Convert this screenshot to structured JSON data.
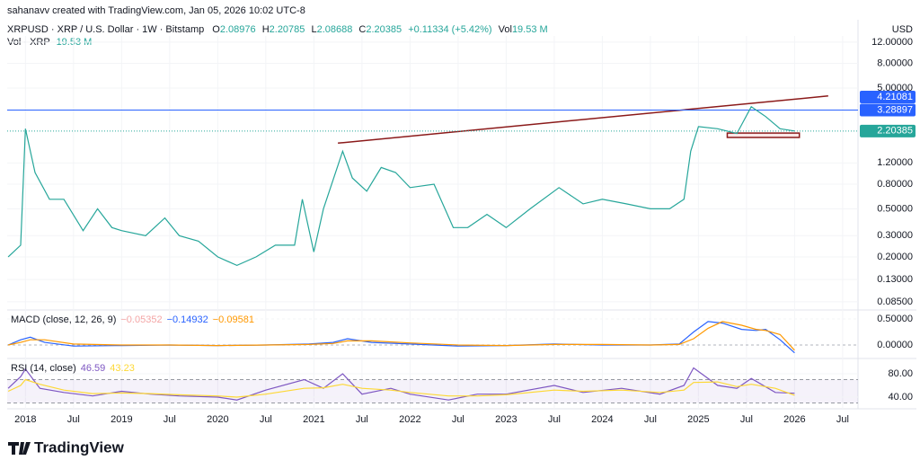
{
  "header": {
    "author_line": "sahanavv created with TradingView.com, Jan 05, 2026 10:02 UTC-8",
    "brand": "TradingView"
  },
  "chart_data": [
    {
      "type": "line",
      "title": "XRPUSD · XRP / U.S. Dollar · 1W · Bitstamp",
      "ohlc": [
        {
          "key": "O",
          "value": "2.08976"
        },
        {
          "key": "H",
          "value": "2.20785"
        },
        {
          "key": "L",
          "value": "2.08688"
        },
        {
          "key": "C",
          "value": "2.20385"
        }
      ],
      "change": "+0.11334 (+5.42%)",
      "vol_key": "Vol",
      "vol_value": "19.53 M",
      "vol_title": "Vol · XRP",
      "vol_title_value": "19.53 M",
      "y_axis_label": "USD",
      "log_scale": true,
      "color": "#26a69a",
      "x": [
        2017.82,
        2017.95,
        2018.0,
        2018.1,
        2018.25,
        2018.4,
        2018.6,
        2018.75,
        2018.9,
        2019.0,
        2019.25,
        2019.45,
        2019.6,
        2019.8,
        2020.0,
        2020.2,
        2020.4,
        2020.6,
        2020.8,
        2020.88,
        2021.0,
        2021.1,
        2021.3,
        2021.4,
        2021.55,
        2021.7,
        2021.85,
        2022.0,
        2022.25,
        2022.45,
        2022.6,
        2022.8,
        2023.0,
        2023.25,
        2023.55,
        2023.8,
        2024.0,
        2024.25,
        2024.5,
        2024.7,
        2024.85,
        2024.92,
        2025.0,
        2025.2,
        2025.4,
        2025.55,
        2025.7,
        2025.85,
        2026.0
      ],
      "values": [
        0.2,
        0.25,
        2.3,
        1.0,
        0.6,
        0.6,
        0.33,
        0.5,
        0.35,
        0.33,
        0.3,
        0.42,
        0.3,
        0.27,
        0.2,
        0.17,
        0.2,
        0.25,
        0.25,
        0.6,
        0.22,
        0.5,
        1.5,
        0.9,
        0.7,
        1.1,
        1.0,
        0.75,
        0.8,
        0.35,
        0.35,
        0.45,
        0.35,
        0.5,
        0.75,
        0.55,
        0.6,
        0.55,
        0.5,
        0.5,
        0.6,
        1.5,
        2.4,
        2.3,
        2.1,
        3.5,
        2.9,
        2.3,
        2.20385
      ],
      "xlim": [
        2017.81,
        2026.66
      ],
      "xticks": [
        {
          "value": 2018,
          "label": "2018"
        },
        {
          "value": 2018.5,
          "label": "Jul"
        },
        {
          "value": 2019,
          "label": "2019"
        },
        {
          "value": 2019.5,
          "label": "Jul"
        },
        {
          "value": 2020,
          "label": "2020"
        },
        {
          "value": 2020.5,
          "label": "Jul"
        },
        {
          "value": 2021,
          "label": "2021"
        },
        {
          "value": 2021.5,
          "label": "Jul"
        },
        {
          "value": 2022,
          "label": "2022"
        },
        {
          "value": 2022.5,
          "label": "Jul"
        },
        {
          "value": 2023,
          "label": "2023"
        },
        {
          "value": 2023.5,
          "label": "Jul"
        },
        {
          "value": 2024,
          "label": "2024"
        },
        {
          "value": 2024.5,
          "label": "Jul"
        },
        {
          "value": 2025,
          "label": "2025"
        },
        {
          "value": 2025.5,
          "label": "Jul"
        },
        {
          "value": 2026,
          "label": "2026"
        },
        {
          "value": 2026.5,
          "label": "Jul"
        }
      ],
      "ylim": [
        0.074,
        13.5
      ],
      "yticks": [
        {
          "value": 12,
          "label": "12.00000"
        },
        {
          "value": 8,
          "label": "8.00000"
        },
        {
          "value": 5,
          "label": "5.00000"
        },
        {
          "value": 1.2,
          "label": "1.20000"
        },
        {
          "value": 0.8,
          "label": "0.80000"
        },
        {
          "value": 0.5,
          "label": "0.50000"
        },
        {
          "value": 0.3,
          "label": "0.30000"
        },
        {
          "value": 0.2,
          "label": "0.20000"
        },
        {
          "value": 0.13,
          "label": "0.13000"
        },
        {
          "value": 0.085,
          "label": "0.08500"
        }
      ],
      "tags": [
        {
          "value": 4.21081,
          "color": "#2962ff",
          "line": "none"
        },
        {
          "value": 3.28897,
          "color": "#2962ff",
          "line": "solid"
        },
        {
          "value": 2.20385,
          "color": "#26a69a",
          "line": "dotted"
        }
      ],
      "trend_line": {
        "x": [
          2021.25,
          2026.35
        ],
        "y": [
          1.75,
          4.3
        ],
        "color": "#8b1a1a"
      },
      "zone": {
        "x": [
          2025.3,
          2026.05
        ],
        "y": [
          1.95,
          2.12
        ],
        "color": "#8b1a1a"
      }
    },
    {
      "type": "line",
      "title": "MACD (close, 12, 26, 9)",
      "legend_values": [
        {
          "label": "−0.05352",
          "color": "#f4a6a6"
        },
        {
          "label": "−0.14932",
          "color": "#2962ff"
        },
        {
          "label": "−0.09581",
          "color": "#ff9800"
        }
      ],
      "x": [
        2017.82,
        2017.95,
        2018.05,
        2018.2,
        2018.5,
        2019,
        2019.5,
        2020,
        2020.5,
        2020.95,
        2021.2,
        2021.35,
        2021.6,
        2022,
        2022.5,
        2023,
        2023.5,
        2024,
        2024.5,
        2024.8,
        2024.95,
        2025.1,
        2025.25,
        2025.45,
        2025.6,
        2025.7,
        2025.85,
        2026.0
      ],
      "series": [
        {
          "color": "#2962ff",
          "values": [
            0,
            0.1,
            0.15,
            0.05,
            -0.02,
            -0.01,
            0,
            -0.01,
            0,
            0.02,
            0.05,
            0.12,
            0.05,
            0.02,
            -0.02,
            -0.01,
            0.02,
            0,
            0,
            0.02,
            0.25,
            0.45,
            0.42,
            0.3,
            0.28,
            0.3,
            0.1,
            -0.15
          ]
        },
        {
          "color": "#ff9800",
          "values": [
            0,
            0.05,
            0.1,
            0.1,
            0.02,
            0,
            0,
            -0.01,
            0,
            0.01,
            0.03,
            0.08,
            0.08,
            0.04,
            0,
            -0.01,
            0.01,
            0.01,
            0,
            0.01,
            0.12,
            0.32,
            0.45,
            0.38,
            0.3,
            0.28,
            0.2,
            -0.1
          ]
        }
      ],
      "ylim": [
        -0.241,
        0.655
      ],
      "yticks": [
        {
          "value": 0.5,
          "label": "0.50000"
        },
        {
          "value": 0,
          "label": "0.00000"
        }
      ]
    },
    {
      "type": "line",
      "title": "RSI (14, close)",
      "legend_values": [
        {
          "label": "46.59",
          "color": "#7e57c2"
        },
        {
          "label": "43.23",
          "color": "#fdd835"
        }
      ],
      "x": [
        2017.82,
        2017.95,
        2018.0,
        2018.15,
        2018.4,
        2018.7,
        2019,
        2019.3,
        2019.6,
        2020,
        2020.2,
        2020.5,
        2020.9,
        2021.1,
        2021.3,
        2021.5,
        2021.8,
        2022,
        2022.4,
        2022.7,
        2023,
        2023.5,
        2023.8,
        2024.2,
        2024.6,
        2024.85,
        2024.95,
        2025.2,
        2025.4,
        2025.55,
        2025.8,
        2026.0
      ],
      "series": [
        {
          "color": "#7e57c2",
          "values": [
            55,
            75,
            88,
            55,
            48,
            42,
            50,
            45,
            42,
            40,
            35,
            52,
            70,
            55,
            80,
            45,
            55,
            45,
            35,
            45,
            45,
            60,
            48,
            55,
            45,
            60,
            90,
            60,
            55,
            72,
            48,
            46.59
          ]
        },
        {
          "color": "#fdd835",
          "values": [
            50,
            60,
            70,
            62,
            52,
            46,
            47,
            46,
            44,
            42,
            40,
            45,
            55,
            56,
            62,
            55,
            52,
            48,
            42,
            42,
            44,
            52,
            50,
            52,
            48,
            52,
            65,
            66,
            58,
            62,
            55,
            43.23
          ]
        }
      ],
      "band": [
        30,
        70
      ],
      "ylim": [
        24.6,
        104.6
      ],
      "yticks": [
        {
          "value": 80,
          "label": "80.00"
        },
        {
          "value": 40,
          "label": "40.00"
        }
      ]
    }
  ]
}
